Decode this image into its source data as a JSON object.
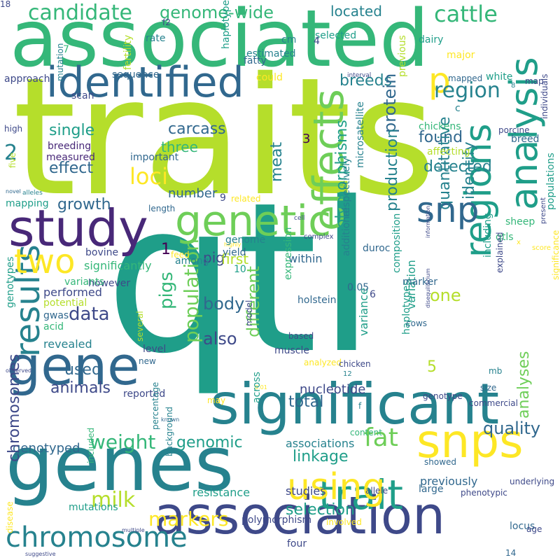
{
  "palette": {
    "yellow": "#fde725",
    "lime": "#b5de2b",
    "lightgreen": "#6ece58",
    "green": "#35b779",
    "teal": "#1f9e89",
    "tealblue": "#26828e",
    "blue": "#31688e",
    "indigo": "#3e4989",
    "purple": "#482878",
    "darkpurple": "#440154",
    "background": "#ffffff"
  },
  "words": [
    {
      "text": "traits",
      "color": "lime"
    },
    {
      "text": "qtl",
      "color": "teal"
    },
    {
      "text": "associated",
      "color": "green"
    },
    {
      "text": "genes",
      "color": "tealblue"
    },
    {
      "text": "significant",
      "color": "tealblue"
    },
    {
      "text": "association",
      "color": "indigo"
    },
    {
      "text": "gene",
      "color": "blue"
    },
    {
      "text": "study",
      "color": "purple"
    },
    {
      "text": "identified",
      "color": "blue"
    },
    {
      "text": "snps",
      "color": "yellow"
    },
    {
      "text": "genetic",
      "color": "lightgreen"
    },
    {
      "text": "effects",
      "color": "lightgreen"
    },
    {
      "text": "analysis",
      "color": "teal"
    },
    {
      "text": "regions",
      "color": "teal"
    },
    {
      "text": "results",
      "color": "tealblue"
    },
    {
      "text": "trait",
      "color": "teal"
    },
    {
      "text": "using",
      "color": "yellow"
    },
    {
      "text": "snp",
      "color": "blue"
    },
    {
      "text": "p",
      "color": "yellow"
    },
    {
      "text": "two",
      "color": "yellow"
    },
    {
      "text": "chromosome",
      "color": "tealblue"
    },
    {
      "text": "population",
      "color": "lightgreen"
    },
    {
      "text": "candidate",
      "color": "green"
    },
    {
      "text": "genome-wide",
      "color": "green"
    },
    {
      "text": "cattle",
      "color": "green"
    },
    {
      "text": "region",
      "color": "tealblue"
    },
    {
      "text": "located",
      "color": "tealblue"
    },
    {
      "text": "breeds",
      "color": "tealblue"
    },
    {
      "text": "single",
      "color": "teal"
    },
    {
      "text": "carcass",
      "color": "blue"
    },
    {
      "text": "three",
      "color": "green"
    },
    {
      "text": "loci",
      "color": "yellow"
    },
    {
      "text": "effect",
      "color": "blue"
    },
    {
      "text": "meat",
      "color": "tealblue"
    },
    {
      "text": "found",
      "color": "blue"
    },
    {
      "text": "detected",
      "color": "tealblue"
    },
    {
      "text": "protein",
      "color": "blue"
    },
    {
      "text": "number",
      "color": "blue"
    },
    {
      "text": "growth",
      "color": "blue"
    },
    {
      "text": "weight",
      "color": "green"
    },
    {
      "text": "milk",
      "color": "lime"
    },
    {
      "text": "markers",
      "color": "yellow"
    },
    {
      "text": "data",
      "color": "indigo"
    },
    {
      "text": "pigs",
      "color": "green"
    },
    {
      "text": "body",
      "color": "blue"
    },
    {
      "text": "animals",
      "color": "indigo"
    },
    {
      "text": "used",
      "color": "blue"
    },
    {
      "text": "fat",
      "color": "lightgreen"
    },
    {
      "text": "genomic",
      "color": "teal"
    },
    {
      "text": "linkage",
      "color": "teal"
    },
    {
      "text": "quality",
      "color": "blue"
    },
    {
      "text": "selection",
      "color": "teal"
    },
    {
      "text": "also",
      "color": "indigo"
    },
    {
      "text": "different",
      "color": "lightgreen"
    },
    {
      "text": "production",
      "color": "tealblue"
    },
    {
      "text": "quantitative",
      "color": "tealblue"
    },
    {
      "text": "identify",
      "color": "tealblue"
    },
    {
      "text": "one",
      "color": "lime"
    },
    {
      "text": "polymorphisms",
      "color": "teal"
    },
    {
      "text": "total",
      "color": "blue"
    },
    {
      "text": "nucleotide",
      "color": "indigo"
    },
    {
      "text": "previously",
      "color": "blue"
    },
    {
      "text": "analyses",
      "color": "lightgreen"
    },
    {
      "text": "genotyped",
      "color": "blue"
    },
    {
      "text": "chromosomes",
      "color": "indigo"
    },
    {
      "text": "associations",
      "color": "tealblue"
    },
    {
      "text": "resistance",
      "color": "teal"
    },
    {
      "text": "polymorphism",
      "color": "indigo"
    },
    {
      "text": "studies",
      "color": "indigo"
    },
    {
      "text": "mutations",
      "color": "teal"
    },
    {
      "text": "2",
      "color": "tealblue"
    },
    {
      "text": "3",
      "color": "darkpurple"
    },
    {
      "text": "1",
      "color": "darkpurple"
    },
    {
      "text": "5",
      "color": "lime"
    },
    {
      "text": "within",
      "color": "blue"
    },
    {
      "text": "pig",
      "color": "indigo"
    },
    {
      "text": "first",
      "color": "lime"
    },
    {
      "text": "significantly",
      "color": "green"
    },
    {
      "text": "bovine",
      "color": "indigo"
    },
    {
      "text": "performed",
      "color": "indigo"
    },
    {
      "text": "however",
      "color": "indigo"
    },
    {
      "text": "potential",
      "color": "lime"
    },
    {
      "text": "acid",
      "color": "green"
    },
    {
      "text": "gwas",
      "color": "blue"
    },
    {
      "text": "revealed",
      "color": "tealblue"
    },
    {
      "text": "level",
      "color": "indigo"
    },
    {
      "text": "muscle",
      "color": "indigo"
    },
    {
      "text": "holstein",
      "color": "blue"
    },
    {
      "text": "variance",
      "color": "teal"
    },
    {
      "text": "variation",
      "color": "teal"
    },
    {
      "text": "haplotypes",
      "color": "teal"
    },
    {
      "text": "composition",
      "color": "teal"
    },
    {
      "text": "marker",
      "color": "blue"
    },
    {
      "text": "genotypes",
      "color": "teal"
    },
    {
      "text": "expression",
      "color": "green"
    },
    {
      "text": "respectively",
      "color": "tealblue"
    },
    {
      "text": "microsatellite",
      "color": "tealblue"
    },
    {
      "text": "breeding",
      "color": "purple"
    },
    {
      "text": "measured",
      "color": "purple"
    },
    {
      "text": "important",
      "color": "blue"
    },
    {
      "text": "mapping",
      "color": "teal"
    },
    {
      "text": "fatty",
      "color": "blue"
    },
    {
      "text": "cm",
      "color": "tealblue"
    },
    {
      "text": "rate",
      "color": "tealblue"
    },
    {
      "text": "estimated",
      "color": "tealblue"
    },
    {
      "text": "haplotype",
      "color": "teal"
    },
    {
      "text": "fertility",
      "color": "lime"
    },
    {
      "text": "mutation",
      "color": "tealblue"
    },
    {
      "text": "approach",
      "color": "indigo"
    },
    {
      "text": "scan",
      "color": "indigo"
    },
    {
      "text": "sequence",
      "color": "blue"
    },
    {
      "text": "could",
      "color": "yellow"
    },
    {
      "text": "selected",
      "color": "teal"
    },
    {
      "text": "dairy",
      "color": "teal"
    },
    {
      "text": "previous",
      "color": "lime"
    },
    {
      "text": "major",
      "color": "yellow"
    },
    {
      "text": "interval",
      "color": "indigo"
    },
    {
      "text": "mapped",
      "color": "blue"
    },
    {
      "text": "white",
      "color": "teal"
    },
    {
      "text": "map",
      "color": "indigo"
    },
    {
      "text": "individuals",
      "color": "indigo"
    },
    {
      "text": "chickens",
      "color": "green"
    },
    {
      "text": "porcine",
      "color": "indigo"
    },
    {
      "text": "breed",
      "color": "blue"
    },
    {
      "text": "affecting",
      "color": "lime"
    },
    {
      "text": "c",
      "color": "tealblue"
    },
    {
      "text": "populations",
      "color": "teal"
    },
    {
      "text": "high",
      "color": "indigo"
    },
    {
      "text": "five",
      "color": "lime"
    },
    {
      "text": "novel",
      "color": "blue"
    },
    {
      "text": "alleles",
      "color": "tealblue"
    },
    {
      "text": "length",
      "color": "blue"
    },
    {
      "text": "related",
      "color": "yellow"
    },
    {
      "text": "cell",
      "color": "indigo"
    },
    {
      "text": "highly",
      "color": "yellow"
    },
    {
      "text": "complex",
      "color": "indigo"
    },
    {
      "text": "0.05",
      "color": "blue"
    },
    {
      "text": "duroc",
      "color": "blue"
    },
    {
      "text": "sheep",
      "color": "green"
    },
    {
      "text": "present",
      "color": "indigo"
    },
    {
      "text": "qtls",
      "color": "green"
    },
    {
      "text": "x",
      "color": "yellow"
    },
    {
      "text": "score",
      "color": "yellow"
    },
    {
      "text": "information",
      "color": "indigo"
    },
    {
      "text": "additional",
      "color": "tealblue"
    },
    {
      "text": "including",
      "color": "teal"
    },
    {
      "text": "explained",
      "color": "indigo"
    },
    {
      "text": "significance",
      "color": "yellow"
    },
    {
      "text": "genome",
      "color": "tealblue"
    },
    {
      "text": "among",
      "color": "tealblue"
    },
    {
      "text": "feed",
      "color": "yellow"
    },
    {
      "text": "yield",
      "color": "blue"
    },
    {
      "text": "variants",
      "color": "green"
    },
    {
      "text": "disequilibrium",
      "color": "indigo"
    },
    {
      "text": "cows",
      "color": "blue"
    },
    {
      "text": "based",
      "color": "indigo"
    },
    {
      "text": "model",
      "color": "indigo"
    },
    {
      "text": "several",
      "color": "lime"
    },
    {
      "text": "new",
      "color": "blue"
    },
    {
      "text": "observed",
      "color": "indigo"
    },
    {
      "text": "0.01",
      "color": "yellow"
    },
    {
      "text": "analyzed",
      "color": "yellow"
    },
    {
      "text": "chicken",
      "color": "indigo"
    },
    {
      "text": "reported",
      "color": "indigo"
    },
    {
      "text": "may",
      "color": "yellow"
    },
    {
      "text": "across",
      "color": "teal"
    },
    {
      "text": "known",
      "color": "blue"
    },
    {
      "text": "genotype",
      "color": "indigo"
    },
    {
      "text": "commercial",
      "color": "indigo"
    },
    {
      "text": "size",
      "color": "blue"
    },
    {
      "text": "mb",
      "color": "tealblue"
    },
    {
      "text": "f",
      "color": "tealblue"
    },
    {
      "text": "percentage",
      "color": "tealblue"
    },
    {
      "text": "background",
      "color": "tealblue"
    },
    {
      "text": "included",
      "color": "green"
    },
    {
      "text": "disease",
      "color": "yellow"
    },
    {
      "text": "multiple",
      "color": "indigo"
    },
    {
      "text": "suggestive",
      "color": "indigo"
    },
    {
      "text": "content",
      "color": "green"
    },
    {
      "text": "involved",
      "color": "yellow"
    },
    {
      "text": "large",
      "color": "blue"
    },
    {
      "text": "phenotypic",
      "color": "indigo"
    },
    {
      "text": "underlying",
      "color": "indigo"
    },
    {
      "text": "locus",
      "color": "blue"
    },
    {
      "text": "age",
      "color": "indigo"
    },
    {
      "text": "allele",
      "color": "indigo"
    },
    {
      "text": "showed",
      "color": "blue"
    },
    {
      "text": "four",
      "color": "indigo"
    },
    {
      "text": "14",
      "color": "blue"
    },
    {
      "text": "f2",
      "color": "indigo"
    },
    {
      "text": "7",
      "color": "green"
    },
    {
      "text": "4",
      "color": "indigo"
    },
    {
      "text": "8",
      "color": "tealblue"
    },
    {
      "text": "9",
      "color": "indigo"
    },
    {
      "text": "6",
      "color": "indigo"
    },
    {
      "text": "10",
      "color": "teal"
    },
    {
      "text": "12",
      "color": "tealblue"
    },
    {
      "text": "18",
      "color": "indigo"
    }
  ]
}
